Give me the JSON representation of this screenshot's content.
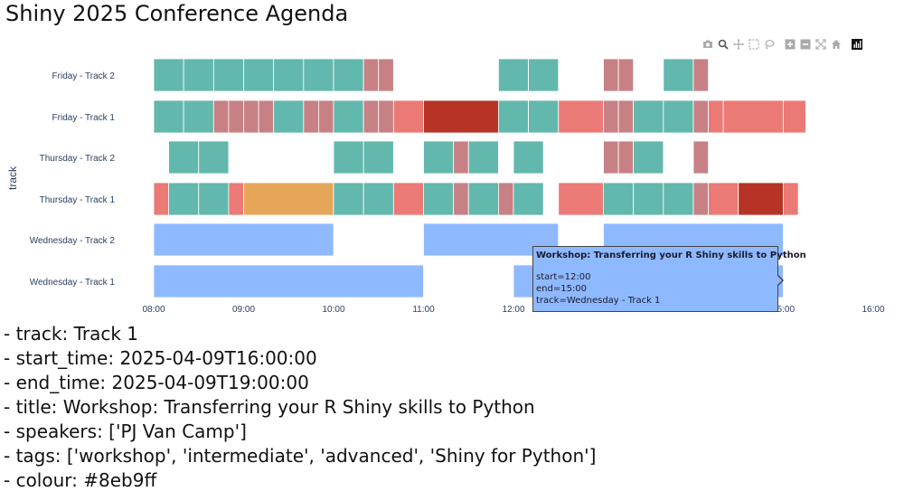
{
  "page": {
    "title": "Shiny 2025 Conference Agenda"
  },
  "modebar": {
    "buttons": [
      "camera-icon",
      "zoom-icon",
      "pan-icon",
      "box-select-icon",
      "lasso-icon",
      "zoom-in-icon",
      "zoom-out-icon",
      "autoscale-icon",
      "reset-axes-icon",
      "plotly-logo-icon"
    ]
  },
  "colors": {
    "talk": "#62b8ad",
    "lightning": "#c78185",
    "keynote": "#b73325",
    "panel": "#eb7a76",
    "break": "#e6a65a",
    "workshop": "#8eb9ff",
    "tooltip_border": "#444444"
  },
  "chart_data": {
    "type": "timeline",
    "ylabel": "track",
    "x_ticks": [
      "08:00",
      "09:00",
      "10:00",
      "11:00",
      "12:00",
      "13:00",
      "14:00",
      "15:00",
      "16:00"
    ],
    "x_range": [
      "08:00",
      "16:00"
    ],
    "categories": [
      "Friday - Track 2",
      "Friday - Track 1",
      "Thursday - Track 2",
      "Thursday - Track 1",
      "Wednesday - Track 2",
      "Wednesday - Track 1"
    ],
    "series": [
      {
        "track": "Friday - Track 2",
        "bars": [
          {
            "start": "08:00",
            "end": "08:20",
            "kind": "talk"
          },
          {
            "start": "08:20",
            "end": "08:40",
            "kind": "talk"
          },
          {
            "start": "08:40",
            "end": "09:00",
            "kind": "talk"
          },
          {
            "start": "09:00",
            "end": "09:20",
            "kind": "talk"
          },
          {
            "start": "09:20",
            "end": "09:40",
            "kind": "talk"
          },
          {
            "start": "09:40",
            "end": "10:00",
            "kind": "talk"
          },
          {
            "start": "10:00",
            "end": "10:20",
            "kind": "talk"
          },
          {
            "start": "10:20",
            "end": "10:30",
            "kind": "lightning"
          },
          {
            "start": "10:30",
            "end": "10:40",
            "kind": "lightning"
          },
          {
            "start": "11:50",
            "end": "12:10",
            "kind": "talk"
          },
          {
            "start": "12:10",
            "end": "12:30",
            "kind": "talk"
          },
          {
            "start": "13:00",
            "end": "13:10",
            "kind": "lightning"
          },
          {
            "start": "13:10",
            "end": "13:20",
            "kind": "lightning"
          },
          {
            "start": "13:40",
            "end": "14:00",
            "kind": "talk"
          },
          {
            "start": "14:00",
            "end": "14:10",
            "kind": "lightning"
          }
        ]
      },
      {
        "track": "Friday - Track 1",
        "bars": [
          {
            "start": "08:00",
            "end": "08:20",
            "kind": "talk"
          },
          {
            "start": "08:20",
            "end": "08:40",
            "kind": "talk"
          },
          {
            "start": "08:40",
            "end": "08:50",
            "kind": "lightning"
          },
          {
            "start": "08:50",
            "end": "09:00",
            "kind": "lightning"
          },
          {
            "start": "09:00",
            "end": "09:10",
            "kind": "lightning"
          },
          {
            "start": "09:10",
            "end": "09:20",
            "kind": "lightning"
          },
          {
            "start": "09:20",
            "end": "09:40",
            "kind": "talk"
          },
          {
            "start": "09:40",
            "end": "09:50",
            "kind": "lightning"
          },
          {
            "start": "09:50",
            "end": "10:00",
            "kind": "lightning"
          },
          {
            "start": "10:00",
            "end": "10:20",
            "kind": "talk"
          },
          {
            "start": "10:20",
            "end": "10:30",
            "kind": "lightning"
          },
          {
            "start": "10:30",
            "end": "10:40",
            "kind": "lightning"
          },
          {
            "start": "10:40",
            "end": "11:00",
            "kind": "panel"
          },
          {
            "start": "11:00",
            "end": "11:50",
            "kind": "keynote"
          },
          {
            "start": "11:50",
            "end": "12:10",
            "kind": "talk"
          },
          {
            "start": "12:10",
            "end": "12:30",
            "kind": "talk"
          },
          {
            "start": "12:30",
            "end": "13:00",
            "kind": "panel"
          },
          {
            "start": "13:00",
            "end": "13:10",
            "kind": "lightning"
          },
          {
            "start": "13:10",
            "end": "13:20",
            "kind": "lightning"
          },
          {
            "start": "13:20",
            "end": "13:40",
            "kind": "talk"
          },
          {
            "start": "13:40",
            "end": "14:00",
            "kind": "talk"
          },
          {
            "start": "14:00",
            "end": "14:10",
            "kind": "lightning"
          },
          {
            "start": "14:10",
            "end": "14:20",
            "kind": "panel"
          },
          {
            "start": "14:20",
            "end": "15:00",
            "kind": "panel"
          },
          {
            "start": "15:00",
            "end": "15:15",
            "kind": "panel"
          }
        ]
      },
      {
        "track": "Thursday - Track 2",
        "bars": [
          {
            "start": "08:10",
            "end": "08:30",
            "kind": "talk"
          },
          {
            "start": "08:30",
            "end": "08:50",
            "kind": "talk"
          },
          {
            "start": "10:00",
            "end": "10:20",
            "kind": "talk"
          },
          {
            "start": "10:20",
            "end": "10:40",
            "kind": "talk"
          },
          {
            "start": "11:00",
            "end": "11:20",
            "kind": "talk"
          },
          {
            "start": "11:20",
            "end": "11:30",
            "kind": "lightning"
          },
          {
            "start": "11:30",
            "end": "11:50",
            "kind": "talk"
          },
          {
            "start": "12:00",
            "end": "12:20",
            "kind": "talk"
          },
          {
            "start": "13:00",
            "end": "13:10",
            "kind": "lightning"
          },
          {
            "start": "13:10",
            "end": "13:20",
            "kind": "lightning"
          },
          {
            "start": "13:20",
            "end": "13:40",
            "kind": "talk"
          },
          {
            "start": "14:00",
            "end": "14:10",
            "kind": "lightning"
          }
        ]
      },
      {
        "track": "Thursday - Track 1",
        "bars": [
          {
            "start": "08:00",
            "end": "08:10",
            "kind": "panel"
          },
          {
            "start": "08:10",
            "end": "08:30",
            "kind": "talk"
          },
          {
            "start": "08:30",
            "end": "08:50",
            "kind": "talk"
          },
          {
            "start": "08:50",
            "end": "09:00",
            "kind": "panel"
          },
          {
            "start": "09:00",
            "end": "10:00",
            "kind": "break"
          },
          {
            "start": "10:00",
            "end": "10:20",
            "kind": "talk"
          },
          {
            "start": "10:20",
            "end": "10:40",
            "kind": "talk"
          },
          {
            "start": "10:40",
            "end": "11:00",
            "kind": "panel"
          },
          {
            "start": "11:00",
            "end": "11:20",
            "kind": "talk"
          },
          {
            "start": "11:20",
            "end": "11:30",
            "kind": "lightning"
          },
          {
            "start": "11:30",
            "end": "11:50",
            "kind": "talk"
          },
          {
            "start": "11:50",
            "end": "12:00",
            "kind": "lightning"
          },
          {
            "start": "12:00",
            "end": "12:20",
            "kind": "talk"
          },
          {
            "start": "12:30",
            "end": "13:00",
            "kind": "panel"
          },
          {
            "start": "13:00",
            "end": "13:20",
            "kind": "talk"
          },
          {
            "start": "13:20",
            "end": "13:40",
            "kind": "talk"
          },
          {
            "start": "13:40",
            "end": "14:00",
            "kind": "talk"
          },
          {
            "start": "14:00",
            "end": "14:10",
            "kind": "lightning"
          },
          {
            "start": "14:10",
            "end": "14:30",
            "kind": "panel"
          },
          {
            "start": "14:30",
            "end": "15:00",
            "kind": "keynote"
          },
          {
            "start": "15:00",
            "end": "15:10",
            "kind": "panel"
          }
        ]
      },
      {
        "track": "Wednesday - Track 2",
        "bars": [
          {
            "start": "08:00",
            "end": "10:00",
            "kind": "workshop"
          },
          {
            "start": "11:00",
            "end": "12:30",
            "kind": "workshop"
          },
          {
            "start": "13:00",
            "end": "15:00",
            "kind": "workshop"
          }
        ]
      },
      {
        "track": "Wednesday - Track 1",
        "bars": [
          {
            "start": "08:00",
            "end": "11:00",
            "kind": "workshop"
          },
          {
            "start": "12:00",
            "end": "15:00",
            "kind": "workshop"
          }
        ]
      }
    ]
  },
  "tooltip": {
    "title": "Workshop: Transferring your R Shiny skills to Python",
    "start": "start=12:00",
    "end": "end=15:00",
    "track": "track=Wednesday - Track 1"
  },
  "details": {
    "track": "- track: Track 1",
    "start_time": "- start_time: 2025-04-09T16:00:00",
    "end_time": "- end_time: 2025-04-09T19:00:00",
    "title": "- title: Workshop: Transferring your R Shiny skills to Python",
    "speakers": "- speakers: ['PJ Van Camp']",
    "tags": "- tags: ['workshop', 'intermediate', 'advanced', 'Shiny for Python']",
    "colour": "- colour: #8eb9ff"
  }
}
